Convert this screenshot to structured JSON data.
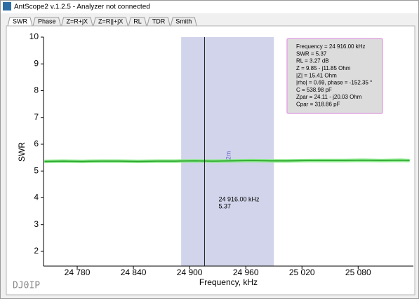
{
  "window": {
    "title": "AntScope2 v.1.2.5 - Analyzer not connected"
  },
  "tabs": [
    "SWR",
    "Phase",
    "Z=R+jX",
    "Z=R||+jX",
    "RL",
    "TDR",
    "Smith"
  ],
  "chart_data": {
    "type": "line",
    "x_label": "Frequency, kHz",
    "y_label": "SWR",
    "xlim": [
      24744,
      25139
    ],
    "ylim": [
      1.45,
      10
    ],
    "xticks": [
      {
        "value": 24780,
        "label": "24 780"
      },
      {
        "value": 24840,
        "label": "24 840"
      },
      {
        "value": 24900,
        "label": "24 900"
      },
      {
        "value": 24960,
        "label": "24 960"
      },
      {
        "value": 25020,
        "label": "25 020"
      },
      {
        "value": 25080,
        "label": "25 080"
      }
    ],
    "yticks": [
      2,
      3,
      4,
      5,
      6,
      7,
      8,
      9,
      10
    ],
    "x": [
      24745,
      24765,
      24785,
      24805,
      24825,
      24845,
      24865,
      24885,
      24905,
      24925,
      24945,
      24965,
      24985,
      25005,
      25025,
      25045,
      25065,
      25085,
      25105,
      25125,
      25135
    ],
    "series": [
      {
        "name": "SWR",
        "color": "#2aa52a",
        "values": [
          5.36,
          5.37,
          5.36,
          5.37,
          5.37,
          5.36,
          5.37,
          5.37,
          5.38,
          5.37,
          5.38,
          5.39,
          5.38,
          5.38,
          5.39,
          5.39,
          5.39,
          5.4,
          5.39,
          5.4,
          5.39
        ]
      }
    ],
    "band": [
      24891,
      24990
    ],
    "cursor": {
      "x": 24916,
      "label_x": "24 916.00 kHz",
      "label_y": "5.37"
    },
    "marker": {
      "x": 24942,
      "label": "2m"
    },
    "info_box": [
      "Frequency = 24 916.00 kHz",
      "SWR = 5.37",
      "RL = 3.27 dB",
      "Z = 9.85 - j11.85 Ohm",
      "|Z| = 15.41 Ohm",
      "|rho| = 0.69, phase = -152.35 °",
      "C = 538.98 pF",
      "Zpar = 24.11 - j20.03 Ohm",
      "Cpar = 318.86 pF"
    ]
  },
  "watermark": "DJ0IP"
}
